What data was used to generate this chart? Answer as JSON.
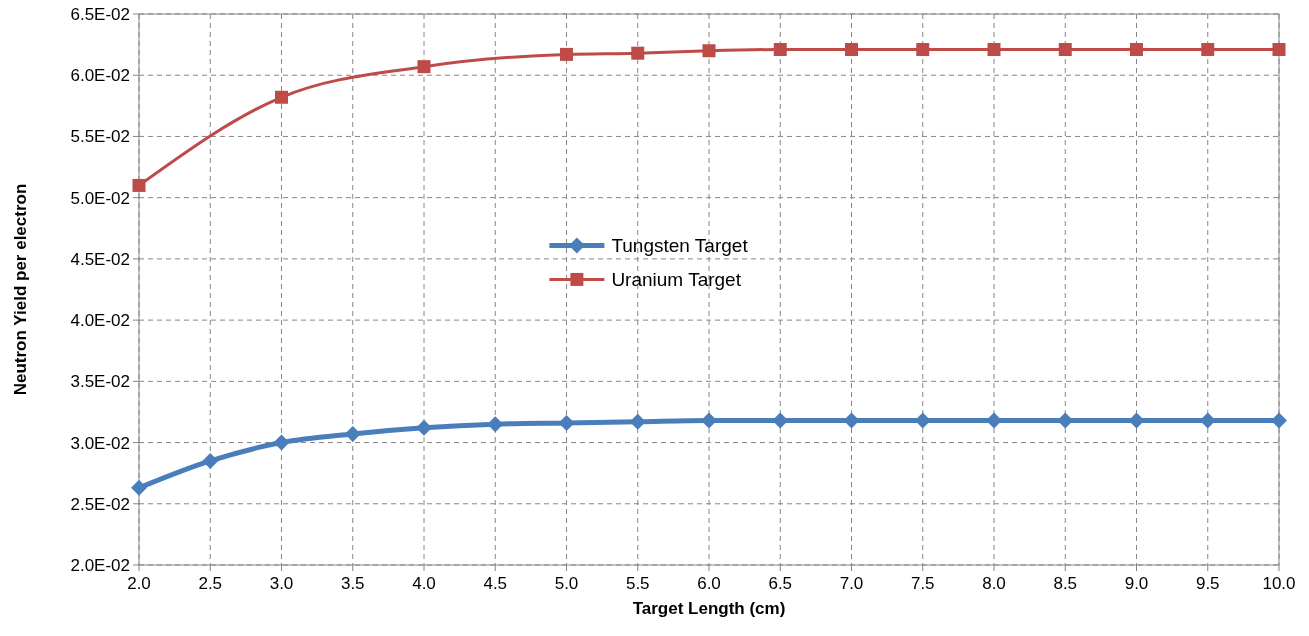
{
  "chart_data": {
    "type": "line",
    "xlabel": "Target  Length (cm)",
    "ylabel": "Neutron Yield per electron",
    "xlim": [
      2,
      10
    ],
    "xticks": [
      {
        "value": 2,
        "label": "2.0"
      },
      {
        "value": 2.5,
        "label": "2.5"
      },
      {
        "value": 3,
        "label": "3.0"
      },
      {
        "value": 3.5,
        "label": "3.5"
      },
      {
        "value": 4,
        "label": "4.0"
      },
      {
        "value": 4.5,
        "label": "4.5"
      },
      {
        "value": 5,
        "label": "5.0"
      },
      {
        "value": 5.5,
        "label": "5.5"
      },
      {
        "value": 6,
        "label": "6.0"
      },
      {
        "value": 6.5,
        "label": "6.5"
      },
      {
        "value": 7,
        "label": "7.0"
      },
      {
        "value": 7.5,
        "label": "7.5"
      },
      {
        "value": 8,
        "label": "8.0"
      },
      {
        "value": 8.5,
        "label": "8.5"
      },
      {
        "value": 9,
        "label": "9.0"
      },
      {
        "value": 9.5,
        "label": "9.5"
      },
      {
        "value": 10,
        "label": "10.0"
      }
    ],
    "ylim": [
      0.02,
      0.065
    ],
    "yticks": [
      {
        "value": 0.02,
        "label": "2.0E-02"
      },
      {
        "value": 0.025,
        "label": "2.5E-02"
      },
      {
        "value": 0.03,
        "label": "3.0E-02"
      },
      {
        "value": 0.035,
        "label": "3.5E-02"
      },
      {
        "value": 0.04,
        "label": "4.0E-02"
      },
      {
        "value": 0.045,
        "label": "4.5E-02"
      },
      {
        "value": 0.05,
        "label": "5.0E-02"
      },
      {
        "value": 0.055,
        "label": "5.5E-02"
      },
      {
        "value": 0.06,
        "label": "6.0E-02"
      },
      {
        "value": 0.065,
        "label": "6.5E-02"
      }
    ],
    "grid": true,
    "legend": "center",
    "line_style": "solid",
    "series": [
      {
        "name": "Tungsten Target",
        "color": "#4a7ebb",
        "marker": "diamond",
        "x": [
          2,
          2.5,
          3,
          3.5,
          4,
          4.5,
          5,
          5.5,
          6,
          6.5,
          7,
          7.5,
          8,
          8.5,
          9,
          9.5,
          10
        ],
        "values": [
          0.0263,
          0.0285,
          0.03,
          0.0307,
          0.0312,
          0.0315,
          0.0316,
          0.0317,
          0.0318,
          0.0318,
          0.0318,
          0.0318,
          0.0318,
          0.0318,
          0.0318,
          0.0318,
          0.0318
        ]
      },
      {
        "name": "Uranium Target",
        "color": "#be4b48",
        "marker": "square",
        "x": [
          2,
          3,
          4,
          5,
          5.5,
          6,
          6.5,
          7,
          7.5,
          8,
          8.5,
          9,
          9.5,
          10
        ],
        "values": [
          0.051,
          0.0582,
          0.0607,
          0.0617,
          0.0618,
          0.062,
          0.0621,
          0.0621,
          0.0621,
          0.0621,
          0.0621,
          0.0621,
          0.0621,
          0.0621
        ]
      }
    ]
  }
}
